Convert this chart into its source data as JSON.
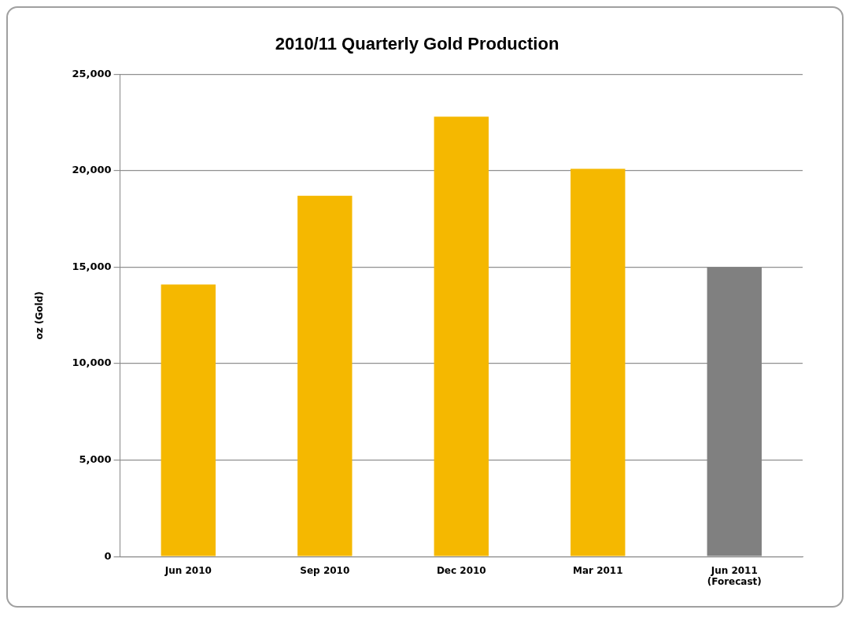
{
  "chart_data": {
    "type": "bar",
    "title": "2010/11 Quarterly Gold Production",
    "ylabel": "oz (Gold)",
    "categories": [
      "Jun 2010",
      "Sep 2010",
      "Dec 2010",
      "Mar 2011",
      "Jun 2011 (Forecast)"
    ],
    "values": [
      14100,
      18700,
      22800,
      20100,
      15000
    ],
    "colors": [
      "#f5b800",
      "#f5b800",
      "#f5b800",
      "#f5b800",
      "#808080"
    ],
    "ylim": [
      0,
      25000
    ],
    "yticks": [
      {
        "value": 0,
        "label": "0"
      },
      {
        "value": 5000,
        "label": "5,000"
      },
      {
        "value": 10000,
        "label": "10,000"
      },
      {
        "value": 15000,
        "label": "15,000"
      },
      {
        "value": 20000,
        "label": "20,000"
      },
      {
        "value": 25000,
        "label": "25,000"
      }
    ],
    "grid": "y",
    "legend": false
  }
}
